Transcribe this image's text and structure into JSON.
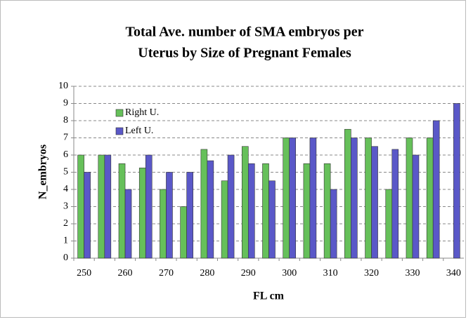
{
  "chart_data": {
    "type": "bar",
    "title": [
      "Total Ave. number of SMA embryos per",
      "Uterus by Size of Pregnant Females"
    ],
    "x_label": "FL cm",
    "y_label": "N_embryos",
    "categories": [
      "250",
      null,
      "260",
      null,
      "270",
      null,
      "280",
      null,
      "290",
      null,
      "300",
      null,
      "310",
      null,
      "320",
      null,
      "330",
      null,
      "340"
    ],
    "series": [
      {
        "name": "Right U.",
        "color": "#66c05a",
        "values": [
          6,
          6,
          5.5,
          5.25,
          4,
          3,
          6.33,
          4.5,
          6.5,
          5.5,
          7,
          5.5,
          5.5,
          7.5,
          7,
          4,
          7,
          7,
          null
        ]
      },
      {
        "name": "Left U.",
        "color": "#5a58c8",
        "values": [
          5,
          6,
          4,
          6,
          5,
          5,
          5.67,
          6,
          5.5,
          4.5,
          7,
          7,
          4,
          7,
          6.5,
          6.33,
          6,
          8,
          9
        ]
      }
    ],
    "ylim": [
      0,
      10
    ],
    "yticks": [
      0,
      1,
      2,
      3,
      4,
      5,
      6,
      7,
      8,
      9,
      10
    ],
    "grid": true,
    "legend": "upper left"
  }
}
